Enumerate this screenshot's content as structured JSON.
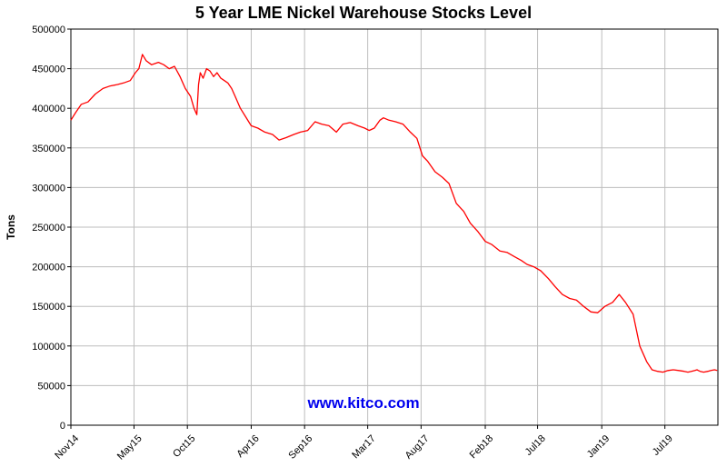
{
  "chart_data": {
    "type": "line",
    "title": "5 Year LME Nickel Warehouse Stocks Level",
    "xlabel": "",
    "ylabel": "Tons",
    "ylim": [
      0,
      500000
    ],
    "yticks": [
      0,
      50000,
      100000,
      150000,
      200000,
      250000,
      300000,
      350000,
      400000,
      450000,
      500000
    ],
    "xlim": [
      "2014-11-01",
      "2019-11-30"
    ],
    "xticks": [
      {
        "label": "Nov14",
        "date": "2014-11-01"
      },
      {
        "label": "May15",
        "date": "2015-05-01"
      },
      {
        "label": "Oct15",
        "date": "2015-10-01"
      },
      {
        "label": "Apr16",
        "date": "2016-04-01"
      },
      {
        "label": "Sep16",
        "date": "2016-09-01"
      },
      {
        "label": "Mar17",
        "date": "2017-03-01"
      },
      {
        "label": "Aug17",
        "date": "2017-08-01"
      },
      {
        "label": "Feb18",
        "date": "2018-02-01"
      },
      {
        "label": "Jul18",
        "date": "2018-07-01"
      },
      {
        "label": "Jan19",
        "date": "2019-01-01"
      },
      {
        "label": "Jul19",
        "date": "2019-07-01"
      }
    ],
    "grid": true,
    "line_color": "#ff0000",
    "watermark": "www.kitco.com",
    "watermark_color": "#0000ee",
    "series": [
      {
        "x": [
          "2014-11-01",
          "2014-11-15",
          "2014-12-01",
          "2014-12-20",
          "2015-01-10",
          "2015-02-01",
          "2015-02-20",
          "2015-03-15",
          "2015-04-01",
          "2015-04-20",
          "2015-05-05",
          "2015-05-15",
          "2015-05-25",
          "2015-06-05",
          "2015-06-20",
          "2015-07-10",
          "2015-07-25",
          "2015-08-10",
          "2015-08-25",
          "2015-09-10",
          "2015-09-25",
          "2015-10-10",
          "2015-10-20",
          "2015-10-28",
          "2015-11-02",
          "2015-11-07",
          "2015-11-15",
          "2015-11-25",
          "2015-12-05",
          "2015-12-15",
          "2015-12-25",
          "2016-01-05",
          "2016-01-15",
          "2016-01-25",
          "2016-02-05",
          "2016-02-15",
          "2016-03-01",
          "2016-03-15",
          "2016-04-01",
          "2016-04-20",
          "2016-05-10",
          "2016-06-01",
          "2016-06-20",
          "2016-07-10",
          "2016-08-01",
          "2016-08-20",
          "2016-09-10",
          "2016-10-01",
          "2016-10-20",
          "2016-11-10",
          "2016-12-01",
          "2016-12-20",
          "2017-01-10",
          "2017-02-01",
          "2017-02-20",
          "2017-03-05",
          "2017-03-20",
          "2017-04-05",
          "2017-04-15",
          "2017-05-01",
          "2017-05-20",
          "2017-06-10",
          "2017-07-01",
          "2017-07-20",
          "2017-08-05",
          "2017-08-20",
          "2017-09-10",
          "2017-10-01",
          "2017-10-20",
          "2017-11-10",
          "2017-12-01",
          "2017-12-20",
          "2018-01-10",
          "2018-02-01",
          "2018-02-20",
          "2018-03-15",
          "2018-04-05",
          "2018-04-25",
          "2018-05-15",
          "2018-06-01",
          "2018-06-20",
          "2018-07-10",
          "2018-08-01",
          "2018-08-20",
          "2018-09-10",
          "2018-10-01",
          "2018-10-20",
          "2018-11-10",
          "2018-12-01",
          "2018-12-20",
          "2019-01-10",
          "2019-02-01",
          "2019-02-20",
          "2019-03-10",
          "2019-04-01",
          "2019-04-20",
          "2019-05-10",
          "2019-05-25",
          "2019-06-10",
          "2019-06-25",
          "2019-07-10",
          "2019-07-25",
          "2019-08-10",
          "2019-08-25",
          "2019-09-05",
          "2019-09-15",
          "2019-09-25",
          "2019-10-01",
          "2019-10-05",
          "2019-10-10",
          "2019-10-20",
          "2019-11-01",
          "2019-11-10",
          "2019-11-20",
          "2019-11-28"
        ],
        "y": [
          385000,
          395000,
          405000,
          408000,
          418000,
          425000,
          428000,
          430000,
          432000,
          435000,
          445000,
          450000,
          468000,
          460000,
          455000,
          458000,
          455000,
          450000,
          453000,
          440000,
          425000,
          415000,
          400000,
          392000,
          430000,
          445000,
          438000,
          450000,
          447000,
          440000,
          445000,
          438000,
          435000,
          432000,
          425000,
          415000,
          400000,
          390000,
          378000,
          375000,
          370000,
          367000,
          360000,
          363000,
          367000,
          370000,
          372000,
          383000,
          380000,
          378000,
          370000,
          380000,
          382000,
          378000,
          375000,
          372000,
          375000,
          385000,
          388000,
          385000,
          383000,
          380000,
          370000,
          362000,
          340000,
          333000,
          320000,
          313000,
          305000,
          280000,
          270000,
          255000,
          245000,
          232000,
          228000,
          220000,
          218000,
          213000,
          208000,
          203000,
          200000,
          195000,
          185000,
          175000,
          165000,
          160000,
          158000,
          150000,
          143000,
          142000,
          150000,
          155000,
          165000,
          155000,
          140000,
          100000,
          80000,
          70000,
          68000,
          67000,
          69000,
          70000,
          69000,
          68000,
          67000,
          68000,
          69000,
          70000,
          69000,
          68000,
          67000,
          68000,
          69000,
          70000,
          69000
        ],
        "note_unused": ""
      }
    ]
  }
}
